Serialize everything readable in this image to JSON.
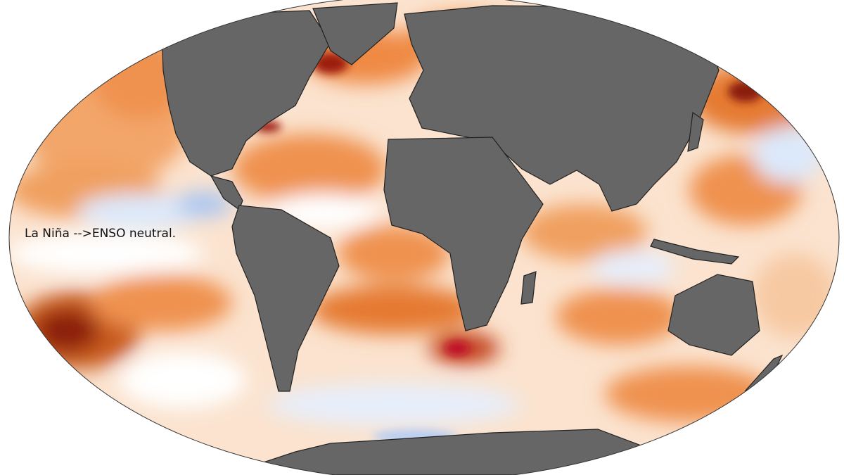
{
  "map": {
    "annotation": "La Niña -->ENSO neutral."
  }
}
